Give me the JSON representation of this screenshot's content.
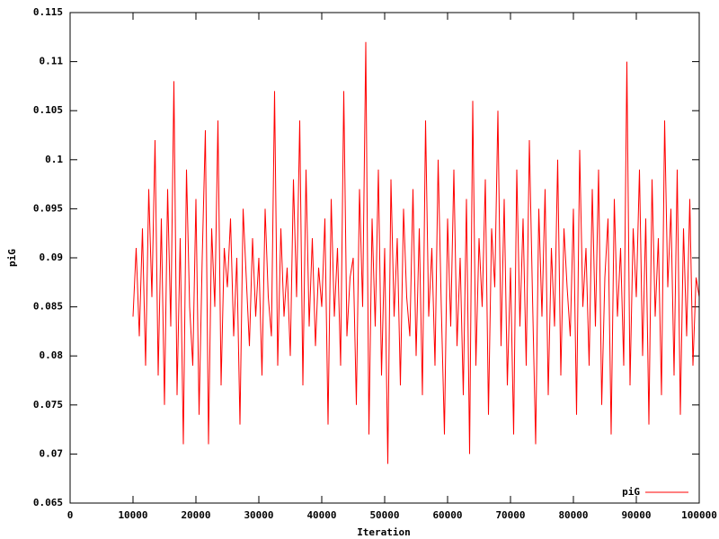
{
  "chart_data": {
    "type": "line",
    "x_label": "Iteration",
    "y_label": "piG",
    "xlim": [
      0,
      100000
    ],
    "xticks": [
      0,
      10000,
      20000,
      30000,
      40000,
      50000,
      60000,
      70000,
      80000,
      90000,
      100000
    ],
    "ylim": [
      0.065,
      0.115
    ],
    "yticks": [
      0.065,
      0.07,
      0.075,
      0.08,
      0.085,
      0.09,
      0.095,
      0.1,
      0.105,
      0.11,
      0.115
    ],
    "legend": "bottom right",
    "grid": false,
    "x": [
      10000,
      10500,
      11000,
      11500,
      12000,
      12500,
      13000,
      13500,
      14000,
      14500,
      15000,
      15500,
      16000,
      16500,
      17000,
      17500,
      18000,
      18500,
      19000,
      19500,
      20000,
      20500,
      21000,
      21500,
      22000,
      22500,
      23000,
      23500,
      24000,
      24500,
      25000,
      25500,
      26000,
      26500,
      27000,
      27500,
      28000,
      28500,
      29000,
      29500,
      30000,
      30500,
      31000,
      31500,
      32000,
      32500,
      33000,
      33500,
      34000,
      34500,
      35000,
      35500,
      36000,
      36500,
      37000,
      37500,
      38000,
      38500,
      39000,
      39500,
      40000,
      40500,
      41000,
      41500,
      42000,
      42500,
      43000,
      43500,
      44000,
      44500,
      45000,
      45500,
      46000,
      46500,
      47000,
      47500,
      48000,
      48500,
      49000,
      49500,
      50000,
      50500,
      51000,
      51500,
      52000,
      52500,
      53000,
      53500,
      54000,
      54500,
      55000,
      55500,
      56000,
      56500,
      57000,
      57500,
      58000,
      58500,
      59000,
      59500,
      60000,
      60500,
      61000,
      61500,
      62000,
      62500,
      63000,
      63500,
      64000,
      64500,
      65000,
      65500,
      66000,
      66500,
      67000,
      67500,
      68000,
      68500,
      69000,
      69500,
      70000,
      70500,
      71000,
      71500,
      72000,
      72500,
      73000,
      73500,
      74000,
      74500,
      75000,
      75500,
      76000,
      76500,
      77000,
      77500,
      78000,
      78500,
      79000,
      79500,
      80000,
      80500,
      81000,
      81500,
      82000,
      82500,
      83000,
      83500,
      84000,
      84500,
      85000,
      85500,
      86000,
      86500,
      87000,
      87500,
      88000,
      88500,
      89000,
      89500,
      90000,
      90500,
      91000,
      91500,
      92000,
      92500,
      93000,
      93500,
      94000,
      94500,
      95000,
      95500,
      96000,
      96500,
      97000,
      97500,
      98000,
      98500,
      99000,
      99500,
      100000
    ],
    "series": [
      {
        "name": "piG",
        "color": "#ff0000",
        "values": [
          0.084,
          0.091,
          0.082,
          0.093,
          0.079,
          0.097,
          0.086,
          0.102,
          0.078,
          0.094,
          0.075,
          0.097,
          0.083,
          0.108,
          0.076,
          0.092,
          0.071,
          0.099,
          0.085,
          0.079,
          0.096,
          0.074,
          0.09,
          0.103,
          0.071,
          0.093,
          0.085,
          0.104,
          0.077,
          0.091,
          0.087,
          0.094,
          0.082,
          0.09,
          0.073,
          0.095,
          0.088,
          0.081,
          0.092,
          0.084,
          0.09,
          0.078,
          0.095,
          0.086,
          0.082,
          0.107,
          0.079,
          0.093,
          0.084,
          0.089,
          0.08,
          0.098,
          0.086,
          0.104,
          0.077,
          0.099,
          0.083,
          0.092,
          0.081,
          0.089,
          0.085,
          0.094,
          0.073,
          0.096,
          0.084,
          0.091,
          0.079,
          0.107,
          0.082,
          0.088,
          0.09,
          0.075,
          0.097,
          0.085,
          0.112,
          0.072,
          0.094,
          0.083,
          0.099,
          0.078,
          0.091,
          0.069,
          0.098,
          0.084,
          0.092,
          0.077,
          0.095,
          0.086,
          0.082,
          0.097,
          0.08,
          0.093,
          0.076,
          0.104,
          0.084,
          0.091,
          0.079,
          0.1,
          0.085,
          0.072,
          0.094,
          0.083,
          0.099,
          0.081,
          0.09,
          0.076,
          0.096,
          0.07,
          0.106,
          0.079,
          0.092,
          0.085,
          0.098,
          0.074,
          0.093,
          0.087,
          0.105,
          0.081,
          0.096,
          0.077,
          0.089,
          0.072,
          0.099,
          0.083,
          0.094,
          0.079,
          0.102,
          0.086,
          0.071,
          0.095,
          0.084,
          0.097,
          0.076,
          0.091,
          0.083,
          0.1,
          0.078,
          0.093,
          0.087,
          0.082,
          0.095,
          0.074,
          0.101,
          0.085,
          0.091,
          0.079,
          0.097,
          0.083,
          0.099,
          0.075,
          0.088,
          0.094,
          0.072,
          0.096,
          0.084,
          0.091,
          0.079,
          0.11,
          0.077,
          0.093,
          0.086,
          0.099,
          0.08,
          0.094,
          0.073,
          0.098,
          0.084,
          0.092,
          0.076,
          0.104,
          0.087,
          0.095,
          0.078,
          0.099,
          0.074,
          0.093,
          0.082,
          0.096,
          0.079,
          0.088,
          0.086
        ]
      }
    ]
  }
}
